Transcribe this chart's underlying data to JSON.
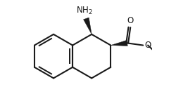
{
  "background": "#ffffff",
  "line_color": "#1a1a1a",
  "line_width": 1.5,
  "font_size_nh2": 8.5,
  "font_size_o": 8.5,
  "nh2_label": "NH$_2$",
  "o_label": "O",
  "methoxy_o": "O"
}
